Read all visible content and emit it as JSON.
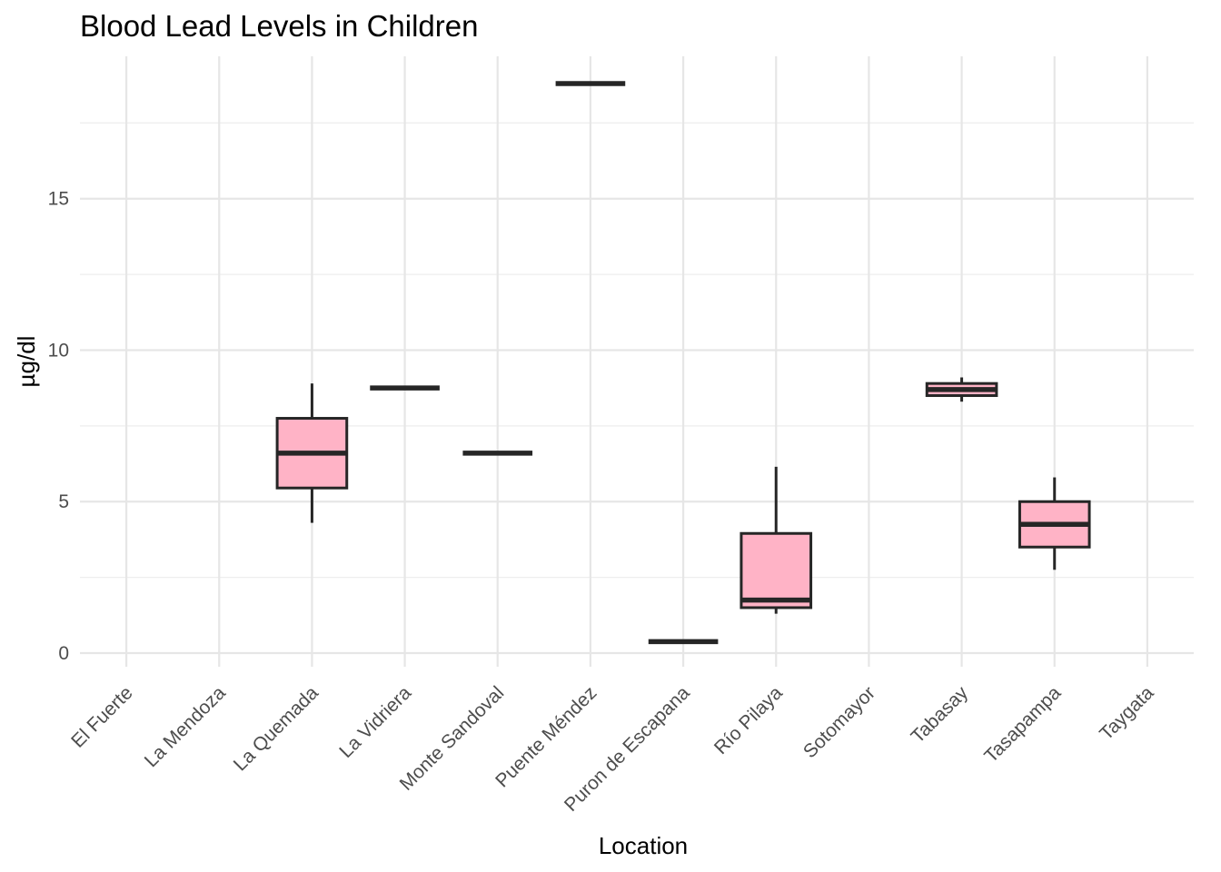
{
  "chart_data": {
    "type": "boxplot",
    "title": "Blood Lead Levels in Children",
    "xlabel": "Location",
    "ylabel": "µg/dl",
    "ylim": [
      -0.45,
      19.7
    ],
    "y_ticks": [
      0,
      5,
      10,
      15
    ],
    "y_minor_ticks": [
      2.5,
      7.5,
      12.5,
      17.5
    ],
    "grid": true,
    "legend": "none",
    "colors": {
      "box_fill": "#FFB3C6",
      "box_stroke": "#262626",
      "grid": "#e6e6e6"
    },
    "categories": [
      "El Fuerte",
      "La Mendoza",
      "La Quemada",
      "La Vidriera",
      "Monte Sandoval",
      "Puente Méndez",
      "Puron de Escapana",
      "Río Pilaya",
      "Sotomayor",
      "Tabasay",
      "Tasapampa",
      "Taygata"
    ],
    "boxes": [
      {
        "category": "La Quemada",
        "whisker_low": 4.3,
        "q1": 5.45,
        "median": 6.6,
        "q3": 7.75,
        "whisker_high": 8.9
      },
      {
        "category": "La Vidriera",
        "whisker_low": 8.75,
        "q1": 8.75,
        "median": 8.75,
        "q3": 8.75,
        "whisker_high": 8.75
      },
      {
        "category": "Monte Sandoval",
        "whisker_low": 6.6,
        "q1": 6.6,
        "median": 6.6,
        "q3": 6.6,
        "whisker_high": 6.6
      },
      {
        "category": "Puente Méndez",
        "whisker_low": 18.8,
        "q1": 18.8,
        "median": 18.8,
        "q3": 18.8,
        "whisker_high": 18.8
      },
      {
        "category": "Puron de Escapana",
        "whisker_low": 0.38,
        "q1": 0.38,
        "median": 0.38,
        "q3": 0.38,
        "whisker_high": 0.38
      },
      {
        "category": "Río Pilaya",
        "whisker_low": 1.3,
        "q1": 1.5,
        "median": 1.75,
        "q3": 3.95,
        "whisker_high": 6.15
      },
      {
        "category": "Tabasay",
        "whisker_low": 8.3,
        "q1": 8.5,
        "median": 8.7,
        "q3": 8.9,
        "whisker_high": 9.1
      },
      {
        "category": "Tasapampa",
        "whisker_low": 2.75,
        "q1": 3.5,
        "median": 4.25,
        "q3": 5.0,
        "whisker_high": 5.8
      }
    ]
  }
}
